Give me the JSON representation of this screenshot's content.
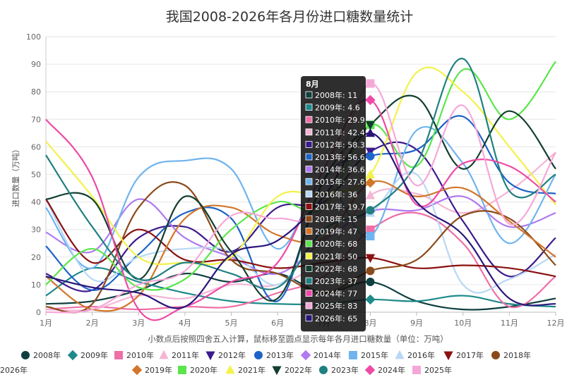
{
  "chart_data": {
    "type": "line",
    "title": "我国2008-2026年各月份进口糖数量统计",
    "ylabel": "进口数量（万吨）",
    "xlabel": "",
    "note": "小数点后按照四舍五入计算，鼠标移至圆点显示每年各月进口糖数量（单位：万吨）",
    "categories": [
      "1月",
      "2月",
      "3月",
      "4月",
      "5月",
      "6月",
      "7月",
      "8月",
      "9月",
      "10月",
      "11月",
      "12月"
    ],
    "ylim": [
      0,
      100
    ],
    "yticks": [
      0,
      10,
      20,
      30,
      40,
      50,
      60,
      70,
      80,
      90,
      100
    ],
    "grid": true,
    "legend_position": "bottom",
    "series": [
      {
        "name": "2008年",
        "color": "#0f3f3f",
        "marker": "circle",
        "values": [
          3,
          4,
          8,
          14,
          11,
          14,
          7,
          11,
          4,
          1,
          2,
          5
        ]
      },
      {
        "name": "2009年",
        "color": "#1e8a8a",
        "marker": "diamond",
        "values": [
          6,
          16,
          11,
          7,
          4,
          3,
          3,
          4.6,
          4,
          6,
          3,
          2
        ]
      },
      {
        "name": "2010年",
        "color": "#ee6fa6",
        "marker": "square",
        "values": [
          1,
          2,
          1,
          2,
          2,
          7,
          13,
          29.9,
          36,
          25,
          2,
          13
        ]
      },
      {
        "name": "2011年",
        "color": "#f5b5d5",
        "marker": "triangle",
        "values": [
          1,
          1,
          6,
          5,
          10,
          10,
          20,
          42.4,
          43,
          36,
          44,
          58
        ]
      },
      {
        "name": "2012年",
        "color": "#3c1a8c",
        "marker": "triangle-down",
        "values": [
          14,
          8,
          27,
          31,
          22,
          38,
          40,
          58.3,
          59,
          33,
          13,
          27
        ]
      },
      {
        "name": "2013年",
        "color": "#1e64c8",
        "marker": "circle",
        "values": [
          24,
          8,
          21,
          36,
          34,
          4,
          48,
          56.6,
          59,
          71,
          47,
          43
        ]
      },
      {
        "name": "2014年",
        "color": "#b07af0",
        "marker": "diamond",
        "values": [
          29,
          22,
          41,
          27,
          20,
          14,
          26,
          36.6,
          37,
          42,
          31,
          36
        ]
      },
      {
        "name": "2015年",
        "color": "#6fb4ee",
        "marker": "square",
        "values": [
          38,
          16,
          49,
          55,
          52,
          23,
          47,
          27.6,
          66,
          54,
          25,
          50
        ]
      },
      {
        "name": "2016年",
        "color": "#b8d8f5",
        "marker": "triangle",
        "values": [
          41,
          12,
          20,
          23,
          22,
          10,
          30,
          36,
          50,
          10,
          12,
          21
        ]
      },
      {
        "name": "2017年",
        "color": "#8b1010",
        "marker": "triangle-down",
        "values": [
          41,
          18,
          30,
          19,
          19,
          16,
          18,
          19.7,
          16,
          17,
          16,
          13
        ]
      },
      {
        "name": "2018年",
        "color": "#8a4a1a",
        "marker": "circle",
        "values": [
          2,
          3,
          38,
          46,
          19,
          14,
          7,
          15,
          19,
          35,
          34,
          17
        ]
      },
      {
        "name": "2019年",
        "color": "#d2762a",
        "marker": "diamond",
        "values": [
          13,
          1,
          6,
          34,
          38,
          28,
          27,
          47,
          42,
          45,
          33,
          20
        ]
      },
      {
        "name": "2020年",
        "color": "#5ae64a",
        "marker": "square",
        "values": [
          10,
          23,
          9,
          12,
          30,
          40,
          38,
          68,
          53,
          88,
          70,
          91
        ]
      },
      {
        "name": "2021年",
        "color": "#f2f24a",
        "marker": "triangle",
        "values": [
          62,
          42,
          20,
          18,
          20,
          42,
          43,
          50,
          87,
          80,
          60,
          39
        ]
      },
      {
        "name": "2022年",
        "color": "#123f30",
        "marker": "triangle-down",
        "values": [
          41,
          41,
          12,
          42,
          22,
          5,
          48,
          68,
          78,
          52,
          73,
          52
        ]
      },
      {
        "name": "2023年",
        "color": "#1f8080",
        "marker": "circle",
        "values": [
          57,
          31,
          12,
          18,
          14,
          9,
          30,
          37,
          54,
          92,
          44,
          50
        ]
      },
      {
        "name": "2024年",
        "color": "#ee4aa6",
        "marker": "diamond",
        "values": [
          70,
          49,
          1,
          2,
          11,
          18,
          52,
          77,
          39,
          54,
          53,
          40
        ]
      },
      {
        "name": "2025年",
        "color": "#f5a8d8",
        "marker": "square",
        "values": [
          0,
          1,
          10,
          15,
          35,
          34,
          38,
          83,
          46,
          75,
          32,
          58
        ]
      },
      {
        "name": "2026年",
        "color": "#2a167a",
        "marker": "triangle",
        "values": [
          13,
          9,
          7,
          2,
          21,
          26,
          42,
          65,
          40,
          28,
          5,
          3
        ]
      }
    ],
    "tooltip": {
      "title": "8月",
      "category_index": 7,
      "lines": [
        "2008年: 11",
        "2009年: 4.6",
        "2010年: 29.9",
        "2011年: 42.4",
        "2012年: 58.3",
        "2013年: 56.6",
        "2014年: 36.6",
        "2015年: 27.6",
        "2016年: 36",
        "2017年: 19.7",
        "2018年: 15",
        "2019年: 47",
        "2020年: 68",
        "2021年: 50",
        "2022年: 68",
        "2023年: 37",
        "2024年: 77",
        "2025年: 83",
        "2026年: 65"
      ]
    }
  }
}
